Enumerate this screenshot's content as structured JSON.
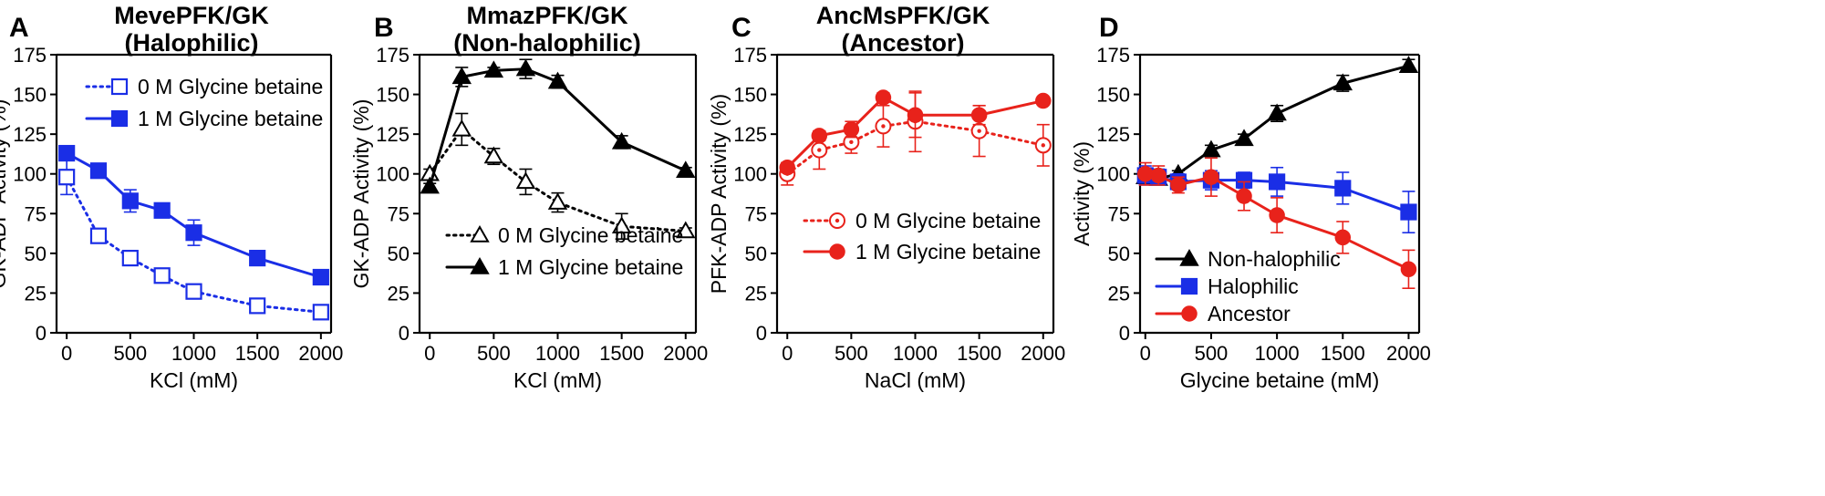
{
  "chart_data": [
    {
      "type": "line",
      "panel": "A",
      "title_lines": [
        "MevePFK/GK",
        "(Halophilic)"
      ],
      "xlabel": "KCl (mM)",
      "ylabel": "GK-ADP Activity (%)",
      "xlim": [
        -80,
        2080
      ],
      "ylim": [
        0,
        175
      ],
      "xticks": [
        0,
        500,
        1000,
        1500,
        2000
      ],
      "yticks": [
        0,
        25,
        50,
        75,
        100,
        125,
        150,
        175
      ],
      "legend_position": "upper-right",
      "series": [
        {
          "name": "0 M Glycine betaine",
          "color": "#1a2ee6",
          "marker": "square-open",
          "line": "dotted",
          "x": [
            0,
            250,
            500,
            750,
            1000,
            1500,
            2000
          ],
          "y": [
            98,
            61,
            47,
            36,
            26,
            17,
            13
          ],
          "err": [
            11,
            3,
            3,
            3,
            3,
            3,
            3
          ]
        },
        {
          "name": "1 M Glycine betaine",
          "color": "#1a2ee6",
          "marker": "square-filled",
          "line": "solid",
          "x": [
            0,
            250,
            500,
            750,
            1000,
            1500,
            2000
          ],
          "y": [
            113,
            102,
            83,
            77,
            63,
            47,
            35
          ],
          "err": [
            3,
            3,
            7,
            3,
            8,
            3,
            2
          ]
        }
      ]
    },
    {
      "type": "line",
      "panel": "B",
      "title_lines": [
        "MmazPFK/GK",
        "(Non-halophilic)"
      ],
      "xlabel": "KCl (mM)",
      "ylabel": "GK-ADP Activity (%)",
      "xlim": [
        -80,
        2080
      ],
      "ylim": [
        0,
        175
      ],
      "xticks": [
        0,
        500,
        1000,
        1500,
        2000
      ],
      "yticks": [
        0,
        25,
        50,
        75,
        100,
        125,
        150,
        175
      ],
      "legend_position": "lower-right",
      "series": [
        {
          "name": "0 M Glycine betaine",
          "color": "#000000",
          "marker": "triangle-open",
          "line": "dotted",
          "x": [
            0,
            250,
            500,
            750,
            1000,
            1500,
            2000
          ],
          "y": [
            100,
            128,
            111,
            95,
            82,
            67,
            64
          ],
          "err": [
            3,
            10,
            5,
            8,
            6,
            8,
            2
          ]
        },
        {
          "name": "1 M Glycine betaine",
          "color": "#000000",
          "marker": "triangle-filled",
          "line": "solid",
          "x": [
            0,
            250,
            500,
            750,
            1000,
            1500,
            2000
          ],
          "y": [
            92,
            161,
            165,
            166,
            158,
            120,
            102
          ],
          "err": [
            2,
            6,
            2,
            6,
            4,
            4,
            2
          ]
        }
      ]
    },
    {
      "type": "line",
      "panel": "C",
      "title_lines": [
        "AncMsPFK/GK",
        "(Ancestor)"
      ],
      "xlabel": "NaCl (mM)",
      "ylabel": "PFK-ADP Activity (%)",
      "xlim": [
        -80,
        2080
      ],
      "ylim": [
        0,
        175
      ],
      "xticks": [
        0,
        500,
        1000,
        1500,
        2000
      ],
      "yticks": [
        0,
        25,
        50,
        75,
        100,
        125,
        150,
        175
      ],
      "legend_position": "center",
      "series": [
        {
          "name": "0 M Glycine betaine",
          "color": "#e8221b",
          "marker": "circle-open-dot",
          "line": "dotted",
          "x": [
            0,
            250,
            500,
            750,
            1000,
            1500,
            2000
          ],
          "y": [
            100,
            115,
            120,
            130,
            133,
            127,
            118
          ],
          "err": [
            7,
            12,
            7,
            13,
            19,
            16,
            13
          ]
        },
        {
          "name": "1 M Glycine betaine",
          "color": "#e8221b",
          "marker": "circle-filled",
          "line": "solid",
          "x": [
            0,
            250,
            500,
            750,
            1000,
            1500,
            2000
          ],
          "y": [
            104,
            124,
            128,
            148,
            137,
            137,
            146
          ],
          "err": [
            3,
            3,
            5,
            3,
            14,
            6,
            2
          ]
        }
      ]
    },
    {
      "type": "line",
      "panel": "D",
      "title_lines": [],
      "xlabel": "Glycine betaine (mM)",
      "ylabel": "Activity (%)",
      "xlim": [
        -40,
        2080
      ],
      "ylim": [
        0,
        175
      ],
      "xticks": [
        0,
        500,
        1000,
        1500,
        2000
      ],
      "yticks": [
        0,
        25,
        50,
        75,
        100,
        125,
        150,
        175
      ],
      "legend_position": "lower-left",
      "series": [
        {
          "name": "Non-halophilic",
          "color": "#000000",
          "marker": "triangle-filled",
          "line": "solid",
          "x": [
            0,
            100,
            250,
            500,
            750,
            1000,
            1500,
            2000
          ],
          "y": [
            98,
            97,
            100,
            115,
            122,
            138,
            157,
            168
          ],
          "err": [
            2,
            2,
            2,
            3,
            3,
            5,
            5,
            4
          ]
        },
        {
          "name": "Halophilic",
          "color": "#1a2ee6",
          "marker": "square-filled",
          "line": "solid",
          "x": [
            0,
            100,
            250,
            500,
            750,
            1000,
            1500,
            2000
          ],
          "y": [
            99,
            98,
            95,
            96,
            96,
            95,
            91,
            76
          ],
          "err": [
            6,
            5,
            5,
            6,
            5,
            9,
            10,
            13
          ]
        },
        {
          "name": "Ancestor",
          "color": "#e8221b",
          "marker": "circle-filled",
          "line": "solid",
          "x": [
            0,
            100,
            250,
            500,
            750,
            1000,
            1500,
            2000
          ],
          "y": [
            100,
            99,
            93,
            98,
            86,
            74,
            60,
            40
          ],
          "err": [
            7,
            6,
            5,
            12,
            9,
            11,
            10,
            12
          ]
        }
      ]
    }
  ]
}
